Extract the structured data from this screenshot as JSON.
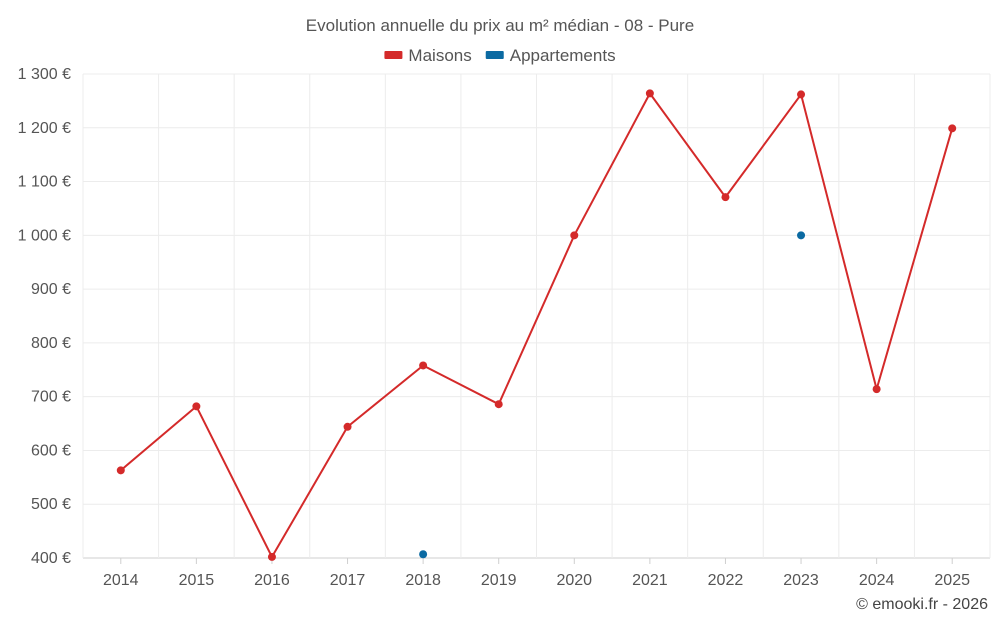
{
  "chart_data": {
    "type": "line",
    "title": "Evolution annuelle du prix au m² médian - 08 - Pure",
    "categories": [
      "2014",
      "2015",
      "2016",
      "2017",
      "2018",
      "2019",
      "2020",
      "2021",
      "2022",
      "2023",
      "2024",
      "2025"
    ],
    "series": [
      {
        "name": "Maisons",
        "color": "#d42a2a",
        "values": [
          563,
          682,
          402,
          644,
          758,
          686,
          1000,
          1264,
          1071,
          1262,
          714,
          1199
        ]
      },
      {
        "name": "Appartements",
        "color": "#0b6aa2",
        "values": [
          null,
          null,
          null,
          null,
          407,
          null,
          null,
          null,
          null,
          1000,
          null,
          null
        ]
      }
    ],
    "ylim": [
      400,
      1300
    ],
    "yticks": [
      400,
      500,
      600,
      700,
      800,
      900,
      1000,
      1100,
      1200,
      1300
    ],
    "ytick_labels": [
      "400 €",
      "500 €",
      "600 €",
      "700 €",
      "800 €",
      "900 €",
      "1 000 €",
      "1 100 €",
      "1 200 €",
      "1 300 €"
    ],
    "grid": true,
    "legend": "top-center"
  },
  "credit": "© emooki.fr - 2026"
}
